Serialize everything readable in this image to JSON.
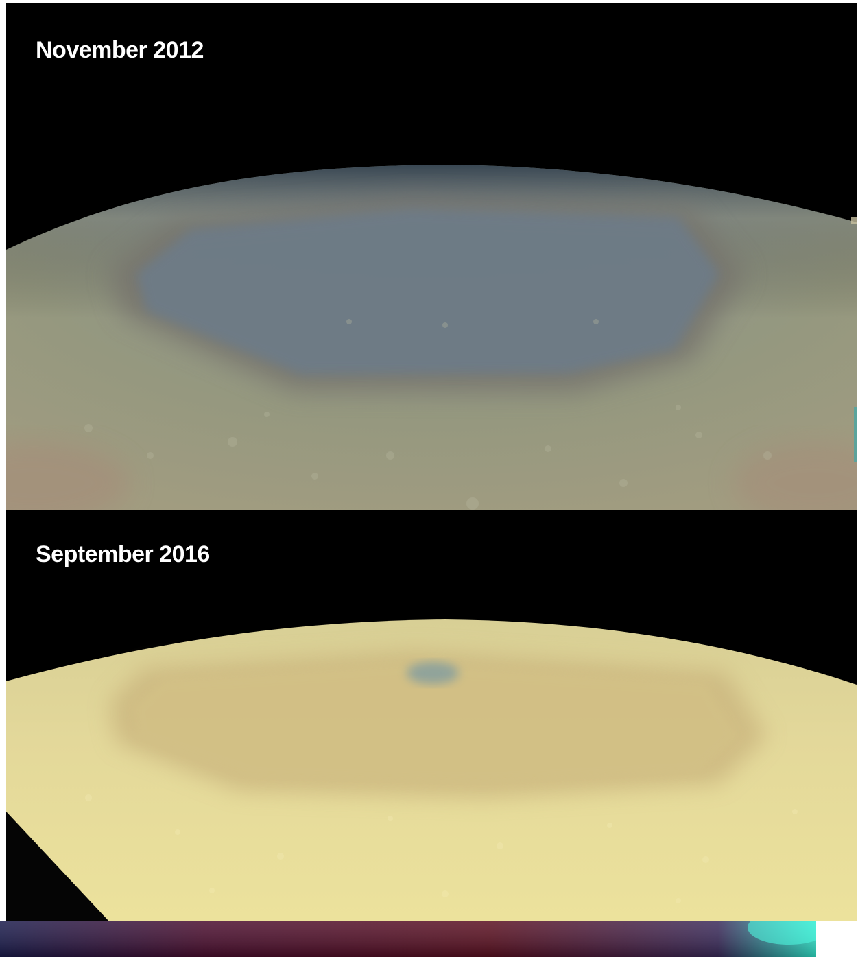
{
  "panels": [
    {
      "caption": "November 2012",
      "colors": {
        "background": "#000000",
        "planet_base": "#95987f",
        "hexagon_band": "#77746d",
        "hexagon_core": "#6d7c88"
      }
    },
    {
      "caption": "September 2016",
      "colors": {
        "background": "#000000",
        "planet_base": "#e6db98",
        "hexagon_band": "#c9b37d",
        "hexagon_core": "#d3c186",
        "pole_spot": "#7a9aa2"
      }
    }
  ],
  "bottom_strip": {
    "colors": [
      "#1a1b4c",
      "#4a0d2e",
      "#5a0f20",
      "#2fe6cc"
    ]
  }
}
